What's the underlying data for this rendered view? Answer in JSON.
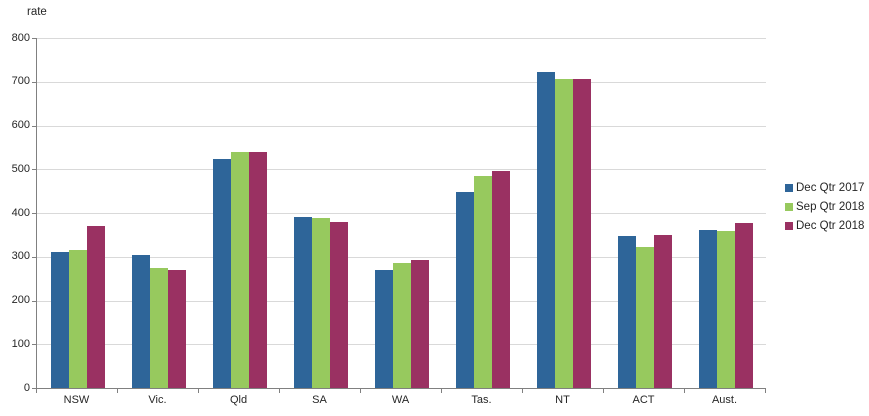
{
  "chart_data": {
    "type": "bar",
    "title": "",
    "ylabel": "rate",
    "xlabel": "",
    "ylim": [
      0,
      800
    ],
    "ytick_step": 100,
    "grid": true,
    "legend_position": "right",
    "categories": [
      "NSW",
      "Vic.",
      "Qld",
      "SA",
      "WA",
      "Tas.",
      "NT",
      "ACT",
      "Aust."
    ],
    "series": [
      {
        "name": "Dec Qtr 2017",
        "color": "#2e6599",
        "values": [
          311,
          304,
          523,
          391,
          270,
          448,
          722,
          347,
          362
        ]
      },
      {
        "name": "Sep Qtr 2018",
        "color": "#97c95e",
        "values": [
          316,
          275,
          539,
          388,
          285,
          484,
          707,
          322,
          358
        ]
      },
      {
        "name": "Dec Qtr 2018",
        "color": "#9a3162",
        "values": [
          371,
          270,
          539,
          380,
          293,
          496,
          707,
          350,
          377
        ]
      }
    ],
    "style_colors": {
      "axis": "#808080",
      "gridline": "#d9d9d9",
      "text": "#262626",
      "background": "#ffffff"
    }
  }
}
